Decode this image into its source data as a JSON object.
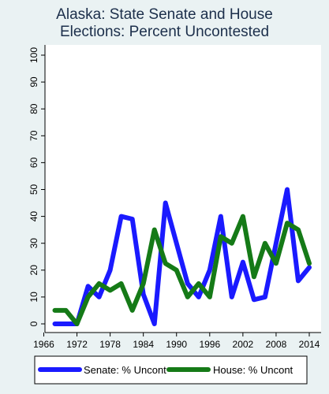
{
  "chart_data": {
    "type": "line",
    "title_lines": [
      "Alaska: State Senate and House",
      "Elections: Percent Uncontested"
    ],
    "xlabel": "",
    "ylabel": "",
    "xlim": [
      1966,
      2014
    ],
    "ylim": [
      0,
      100
    ],
    "xticks": [
      1966,
      1972,
      1978,
      1984,
      1990,
      1996,
      2002,
      2008,
      2014
    ],
    "yticks": [
      0,
      10,
      20,
      30,
      40,
      50,
      60,
      70,
      80,
      90,
      100
    ],
    "grid": false,
    "legend_position": "bottom",
    "series": [
      {
        "name": "Senate: % Uncont",
        "color": "#1a1aff",
        "x": [
          1968,
          1970,
          1972,
          1974,
          1976,
          1978,
          1980,
          1982,
          1984,
          1986,
          1988,
          1990,
          1992,
          1994,
          1996,
          1998,
          2000,
          2002,
          2004,
          2006,
          2008,
          2010,
          2012,
          2014
        ],
        "y": [
          0,
          0,
          0,
          14,
          10,
          20,
          40,
          39,
          11,
          0,
          45,
          30,
          15,
          10,
          20,
          40,
          10,
          23,
          9,
          10,
          30,
          50,
          16,
          21
        ]
      },
      {
        "name": "House: % Uncont",
        "color": "#157a17",
        "x": [
          1968,
          1970,
          1972,
          1974,
          1976,
          1978,
          1980,
          1982,
          1984,
          1986,
          1988,
          1990,
          1992,
          1994,
          1996,
          1998,
          2000,
          2002,
          2004,
          2006,
          2008,
          2010,
          2012,
          2014
        ],
        "y": [
          5,
          5,
          0,
          10,
          15,
          12.5,
          15,
          5,
          15,
          35,
          22.5,
          20,
          10,
          15,
          10,
          32.5,
          30,
          40,
          17.5,
          30,
          22.5,
          37.5,
          35,
          22.5
        ]
      }
    ]
  }
}
